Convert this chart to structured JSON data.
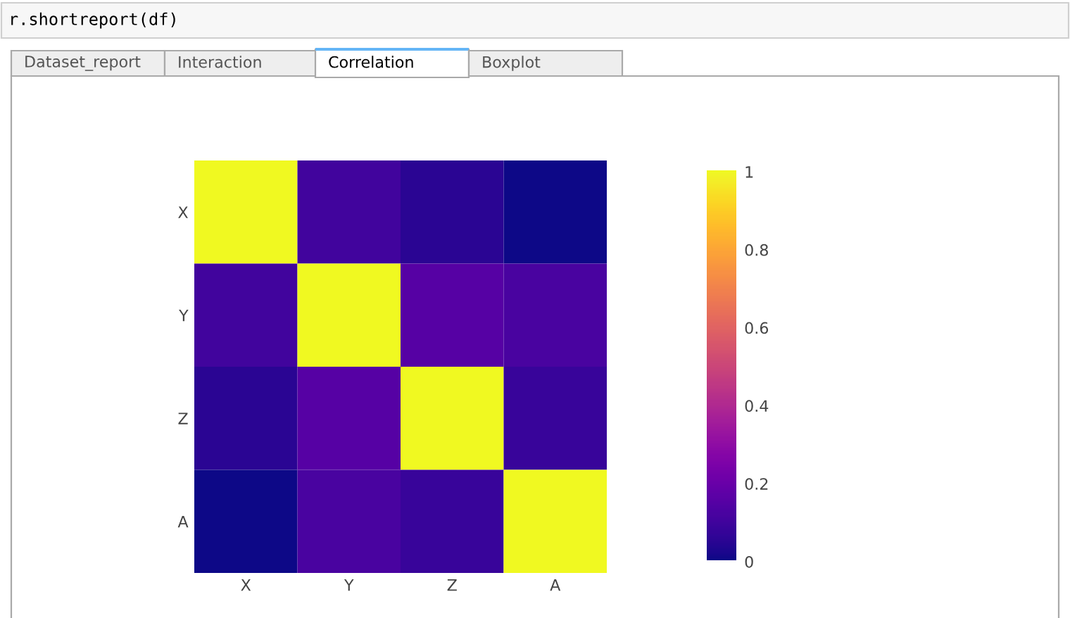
{
  "chart_data": {
    "type": "heatmap",
    "categories": [
      "X",
      "Y",
      "Z",
      "A"
    ],
    "y_categories": [
      "X",
      "Y",
      "Z",
      "A"
    ],
    "cells": [
      [
        1,
        0.1,
        0.05,
        0
      ],
      [
        0.1,
        1,
        0.15,
        0.12
      ],
      [
        0.05,
        0.15,
        1,
        0.08
      ],
      [
        0,
        0.12,
        0.08,
        1
      ]
    ],
    "clim": [
      0,
      1
    ],
    "cticks": [
      0,
      0.2,
      0.4,
      0.6,
      0.8,
      1
    ],
    "annotations": [
      "r.shortreport(df)",
      "Dataset_report",
      "Interaction",
      "Correlation",
      "Boxplot"
    ]
  }
}
